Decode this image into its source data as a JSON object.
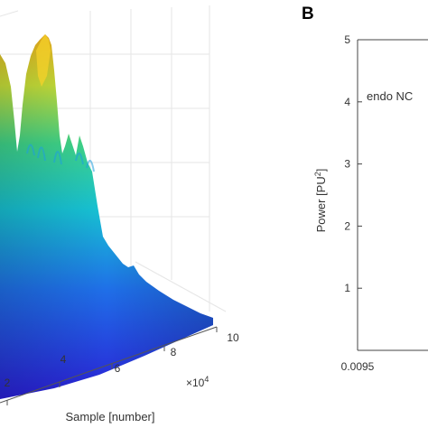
{
  "chart_data": [
    {
      "type": "surface",
      "panel": "",
      "xlabel": "Sample [number]",
      "x_tick_labels": [
        "2",
        "4",
        "6",
        "8",
        "10"
      ],
      "x_exponent_label": "×10",
      "x_exponent_power": "4",
      "colormap": [
        "#2a1fd6",
        "#1f6fe8",
        "#17c2d4",
        "#3fd68a",
        "#c9e23a",
        "#f2b21c"
      ],
      "profile": {
        "x": [
          2,
          3,
          4,
          5,
          6,
          7,
          8,
          9,
          10
        ],
        "peak_relative": [
          0.98,
          0.62,
          0.34,
          0.16,
          0.12,
          0.07,
          0.04,
          0.02,
          0.01
        ]
      }
    },
    {
      "type": "line",
      "panel": "B",
      "ylabel_prefix": "Power [PU",
      "ylabel_sup": "2",
      "ylabel_suffix": "]",
      "ylim": [
        0,
        5
      ],
      "y_ticks": [
        "1",
        "2",
        "3",
        "4",
        "5"
      ],
      "x_tick_labels": [
        "0.0095"
      ],
      "legend_text": "endo NC"
    }
  ]
}
